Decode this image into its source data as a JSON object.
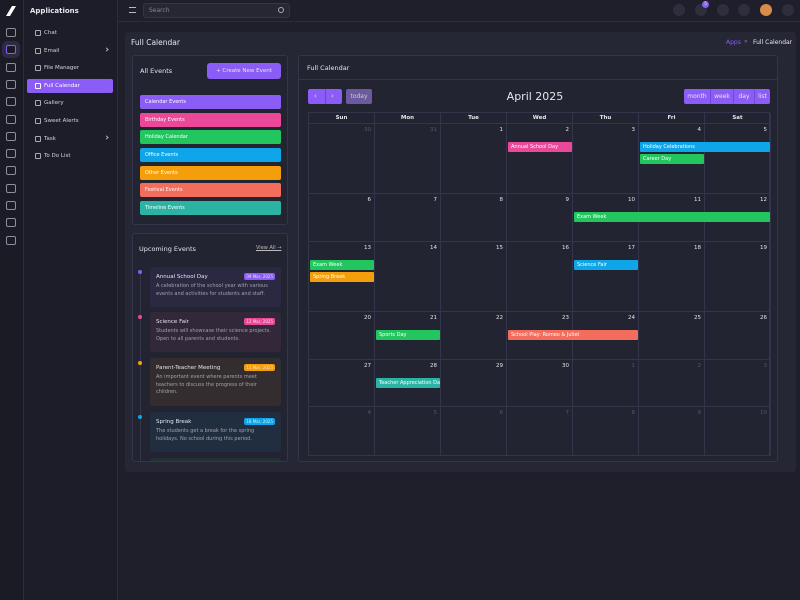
{
  "sidebar": {
    "title": "Applications",
    "menu": [
      {
        "label": "Chat"
      },
      {
        "label": "Email",
        "submenu": true
      },
      {
        "label": "File Manager"
      },
      {
        "label": "Full Calendar",
        "active": true
      },
      {
        "label": "Gallery"
      },
      {
        "label": "Sweet Alerts"
      },
      {
        "label": "Task",
        "submenu": true
      },
      {
        "label": "To Do List"
      }
    ]
  },
  "topbar": {
    "search_placeholder": "Search",
    "cart_badge": 5
  },
  "page": {
    "title": "Full Calendar",
    "breadcrumb": [
      "Apps",
      "Full Calendar"
    ]
  },
  "all_events": {
    "title": "All Events",
    "button": "+ Create New Event",
    "items": [
      {
        "label": "Calendar Events",
        "color": "#8b5cf6"
      },
      {
        "label": "Birthday Events",
        "color": "#ec4899"
      },
      {
        "label": "Holiday Calendar",
        "color": "#22c55e"
      },
      {
        "label": "Office Events",
        "color": "#0ea5e9"
      },
      {
        "label": "Other Events",
        "color": "#f59e0b"
      },
      {
        "label": "Festival Events",
        "color": "#f26d5b"
      },
      {
        "label": "Timeline Events",
        "color": "#2bb3a3"
      }
    ]
  },
  "upcoming": {
    "title": "Upcoming Events",
    "view_all": "View All →",
    "items": [
      {
        "title": "Annual School Day",
        "date": "09 Mar, 2025",
        "description": "A celebration of the school year with various events and activities for students and staff.",
        "color": "#8b5cf6"
      },
      {
        "title": "Science Fair",
        "date": "12 Mar, 2025",
        "description": "Students will showcase their science projects. Open to all parents and students.",
        "color": "#ec4899"
      },
      {
        "title": "Parent-Teacher Meeting",
        "date": "15 Mar, 2025",
        "description": "An important event where parents meet teachers to discuss the progress of their children.",
        "color": "#f59e0b"
      },
      {
        "title": "Spring Break",
        "date": "18 Mar, 2025",
        "description": "The students get a break for the spring holidays. No school during this period.",
        "color": "#0ea5e9"
      }
    ]
  },
  "calendar": {
    "card_title": "Full Calendar",
    "today": "today",
    "month_title": "April 2025",
    "views": [
      "month",
      "week",
      "day",
      "list"
    ],
    "weekdays": [
      "Sun",
      "Mon",
      "Tue",
      "Wed",
      "Thu",
      "Fri",
      "Sat"
    ],
    "weeks": [
      [
        {
          "day": 30,
          "muted": true
        },
        {
          "day": 31,
          "muted": true
        },
        {
          "day": 1
        },
        {
          "day": 2,
          "events": [
            {
              "title": "Annual School Day",
              "color": "#ec4899",
              "span_days": 1
            }
          ]
        },
        {
          "day": 3
        },
        {
          "day": 4,
          "events": [
            {
              "title": "Holiday Celebrations",
              "color": "#0ea5e9",
              "span_days": 2
            },
            {
              "title": "Career Day",
              "color": "#22c55e",
              "span_days": 1
            }
          ]
        },
        {
          "day": 5
        }
      ],
      [
        {
          "day": 6
        },
        {
          "day": 7
        },
        {
          "day": 8
        },
        {
          "day": 9
        },
        {
          "day": 10,
          "events": [
            {
              "title": "Exam Week",
              "color": "#22c55e",
              "span_days": 3
            }
          ]
        },
        {
          "day": 11
        },
        {
          "day": 12
        }
      ],
      [
        {
          "day": 13,
          "events": [
            {
              "title": "Exam Week",
              "color": "#22c55e",
              "span_days": 1
            },
            {
              "title": "Spring Break",
              "color": "#f59e0b",
              "span_days": 1
            }
          ]
        },
        {
          "day": 14
        },
        {
          "day": 15
        },
        {
          "day": 16
        },
        {
          "day": 17,
          "events": [
            {
              "title": "Science Fair",
              "color": "#0ea5e9",
              "span_days": 1
            }
          ]
        },
        {
          "day": 18
        },
        {
          "day": 19
        }
      ],
      [
        {
          "day": 20
        },
        {
          "day": 21,
          "events": [
            {
              "title": "Sports Day",
              "color": "#22c55e",
              "span_days": 1
            }
          ]
        },
        {
          "day": 22
        },
        {
          "day": 23,
          "events": [
            {
              "title": "School Play: Romeo & Juliet",
              "color": "#f26d5b",
              "span_days": 2
            }
          ]
        },
        {
          "day": 24
        },
        {
          "day": 25
        },
        {
          "day": 26
        }
      ],
      [
        {
          "day": 27
        },
        {
          "day": 28,
          "events": [
            {
              "title": "Teacher Appreciation Day",
              "color": "#2bb3a3",
              "span_days": 1
            }
          ]
        },
        {
          "day": 29
        },
        {
          "day": 30
        },
        {
          "day": 1,
          "muted": true
        },
        {
          "day": 2,
          "muted": true
        },
        {
          "day": 3,
          "muted": true
        }
      ],
      [
        {
          "day": 4,
          "muted": true
        },
        {
          "day": 5,
          "muted": true
        },
        {
          "day": 6,
          "muted": true
        },
        {
          "day": 7,
          "muted": true
        },
        {
          "day": 8,
          "muted": true
        },
        {
          "day": 9,
          "muted": true
        },
        {
          "day": 10,
          "muted": true
        }
      ]
    ]
  }
}
